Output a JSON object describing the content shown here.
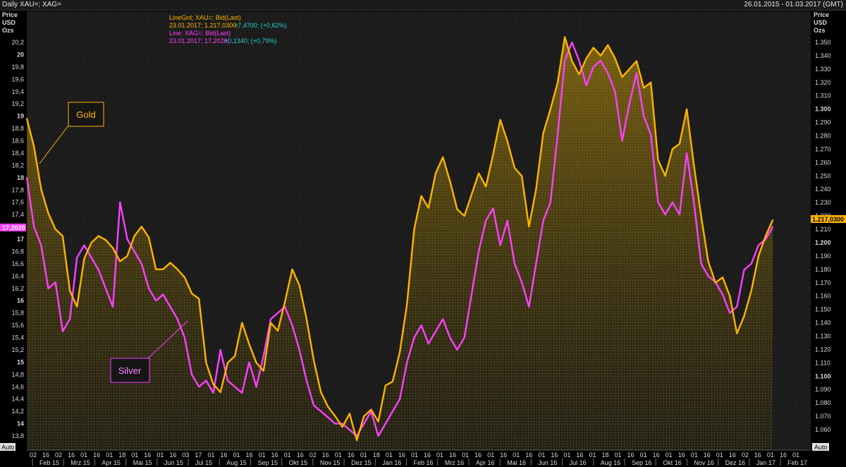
{
  "window": {
    "title": "Daily XAU=; XAG=",
    "date_range": "26.01.2015 - 01.03.2017 (GMT)"
  },
  "left_axis": {
    "header": [
      "Price",
      "USD",
      "Ozs"
    ],
    "current_value": "17,2020",
    "auto_label": "Auto"
  },
  "right_axis": {
    "header": [
      "Price",
      "USD",
      "Ozs"
    ],
    "current_value": "1.217,0300",
    "auto_label": "Auto"
  },
  "legend": {
    "gold_line1": "LineGrd; XAU=; Bid(Last)",
    "gold_line2_date": "23.01.2017; 1.217,0300;",
    "gold_line2_change": "+7,4700; (+0,62%)",
    "silver_line1": "Line; XAG=; Bid(Last)",
    "silver_line2_date": "23.01.2017; 17,2020;",
    "silver_line2_change": "+0,1340; (+0,79%)"
  },
  "annotations": {
    "gold": "Gold",
    "silver": "Silver"
  },
  "colors": {
    "gold": "#ffb400",
    "silver": "#ff40ff",
    "change": "#20d0d0",
    "background": "#1c1c1c"
  },
  "chart_data": {
    "type": "line",
    "title": "Daily XAU=; XAG=",
    "x_ticks_days": [
      "02",
      "16",
      "02",
      "16",
      "01",
      "16",
      "01",
      "18",
      "01",
      "16",
      "01",
      "16",
      "03",
      "17",
      "01",
      "16",
      "01",
      "16",
      "01",
      "16",
      "01",
      "16",
      "02",
      "16",
      "01",
      "16",
      "01",
      "18",
      "01",
      "16",
      "01",
      "16",
      "01",
      "16",
      "01",
      "16",
      "01",
      "16",
      "01",
      "16",
      "01",
      "16",
      "01",
      "16",
      "01",
      "18",
      "01",
      "16",
      "01",
      "16",
      "01",
      "16",
      "01",
      "16",
      "01",
      "16",
      "02",
      "16",
      "01",
      "16",
      "01"
    ],
    "x_ticks_months": [
      "Feb 15",
      "Mrz 15",
      "Apr 15",
      "Mai 15",
      "Jun 15",
      "Jul 15",
      "Aug 15",
      "Sep 15",
      "Okt 15",
      "Nov 15",
      "Dez 15",
      "Jan 16",
      "Feb 16",
      "Mrz 16",
      "Apr 16",
      "Mai 16",
      "Jun 16",
      "Jul 16",
      "Aug 16",
      "Sep 16",
      "Okt 16",
      "Nov 16",
      "Dez 16",
      "Jan 17",
      "Feb 17"
    ],
    "left_axis_ticks": [
      "13,8",
      "14",
      "14,2",
      "14,4",
      "14,6",
      "14,8",
      "15",
      "15,2",
      "15,4",
      "15,6",
      "15,8",
      "16",
      "16,2",
      "16,4",
      "16,6",
      "16,8",
      "17",
      "17,2",
      "17,4",
      "17,6",
      "17,8",
      "18",
      "18,2",
      "18,4",
      "18,6",
      "18,8",
      "19",
      "19,2",
      "19,4",
      "19,6",
      "19,8",
      "20",
      "20,2"
    ],
    "right_axis_ticks": [
      "1.060",
      "1.070",
      "1.080",
      "1.090",
      "1.100",
      "1.110",
      "1.120",
      "1.130",
      "1.140",
      "1.150",
      "1.160",
      "1.170",
      "1.180",
      "1.190",
      "1.200",
      "1.210",
      "1.220",
      "1.230",
      "1.240",
      "1.250",
      "1.260",
      "1.270",
      "1.280",
      "1.290",
      "1.300",
      "1.310",
      "1.320",
      "1.330",
      "1.340",
      "1.350"
    ],
    "left_ylim": [
      13.8,
      20.2
    ],
    "right_ylim": [
      1060,
      1350
    ],
    "series": [
      {
        "name": "XAU=",
        "axis": "right",
        "style": "line-gradient-fill",
        "x": [
          "2015-01-26",
          "2015-02-02",
          "2015-02-09",
          "2015-02-16",
          "2015-02-23",
          "2015-03-02",
          "2015-03-09",
          "2015-03-16",
          "2015-03-23",
          "2015-03-30",
          "2015-04-06",
          "2015-04-13",
          "2015-04-20",
          "2015-04-27",
          "2015-05-04",
          "2015-05-11",
          "2015-05-18",
          "2015-05-25",
          "2015-06-01",
          "2015-06-08",
          "2015-06-15",
          "2015-06-22",
          "2015-06-29",
          "2015-07-06",
          "2015-07-13",
          "2015-07-20",
          "2015-07-27",
          "2015-08-03",
          "2015-08-10",
          "2015-08-17",
          "2015-08-24",
          "2015-08-31",
          "2015-09-07",
          "2015-09-14",
          "2015-09-21",
          "2015-09-28",
          "2015-10-05",
          "2015-10-12",
          "2015-10-19",
          "2015-10-26",
          "2015-11-02",
          "2015-11-09",
          "2015-11-16",
          "2015-11-23",
          "2015-11-30",
          "2015-12-07",
          "2015-12-14",
          "2015-12-21",
          "2015-12-28",
          "2016-01-04",
          "2016-01-11",
          "2016-01-18",
          "2016-01-25",
          "2016-02-01",
          "2016-02-08",
          "2016-02-15",
          "2016-02-22",
          "2016-02-29",
          "2016-03-07",
          "2016-03-14",
          "2016-03-21",
          "2016-03-28",
          "2016-04-04",
          "2016-04-11",
          "2016-04-18",
          "2016-04-25",
          "2016-05-02",
          "2016-05-09",
          "2016-05-16",
          "2016-05-23",
          "2016-05-30",
          "2016-06-06",
          "2016-06-13",
          "2016-06-20",
          "2016-06-27",
          "2016-07-04",
          "2016-07-11",
          "2016-07-18",
          "2016-07-25",
          "2016-08-01",
          "2016-08-08",
          "2016-08-15",
          "2016-08-22",
          "2016-08-29",
          "2016-09-05",
          "2016-09-12",
          "2016-09-19",
          "2016-09-26",
          "2016-10-03",
          "2016-10-10",
          "2016-10-17",
          "2016-10-24",
          "2016-10-31",
          "2016-11-07",
          "2016-11-14",
          "2016-11-21",
          "2016-11-28",
          "2016-12-05",
          "2016-12-12",
          "2016-12-19",
          "2016-12-26",
          "2017-01-02",
          "2017-01-09",
          "2017-01-16",
          "2017-01-23"
        ],
        "y": [
          1293,
          1272,
          1240,
          1222,
          1210,
          1205,
          1164,
          1152,
          1188,
          1200,
          1205,
          1202,
          1196,
          1186,
          1190,
          1205,
          1212,
          1204,
          1180,
          1180,
          1185,
          1180,
          1174,
          1162,
          1158,
          1110,
          1094,
          1088,
          1110,
          1115,
          1140,
          1124,
          1110,
          1104,
          1140,
          1134,
          1156,
          1180,
          1168,
          1143,
          1112,
          1088,
          1077,
          1070,
          1062,
          1072,
          1052,
          1070,
          1075,
          1066,
          1093,
          1096,
          1118,
          1154,
          1210,
          1235,
          1226,
          1252,
          1264,
          1246,
          1225,
          1220,
          1236,
          1252,
          1242,
          1266,
          1292,
          1276,
          1256,
          1250,
          1212,
          1240,
          1282,
          1300,
          1320,
          1354,
          1336,
          1326,
          1338,
          1346,
          1340,
          1348,
          1338,
          1324,
          1330,
          1336,
          1316,
          1320,
          1262,
          1250,
          1270,
          1274,
          1300,
          1258,
          1220,
          1186,
          1170,
          1174,
          1160,
          1132,
          1145,
          1164,
          1190,
          1205,
          1217
        ]
      },
      {
        "name": "XAG=",
        "axis": "left",
        "style": "line",
        "x": [
          "2015-01-26",
          "2015-02-02",
          "2015-02-09",
          "2015-02-16",
          "2015-02-23",
          "2015-03-02",
          "2015-03-09",
          "2015-03-16",
          "2015-03-23",
          "2015-03-30",
          "2015-04-06",
          "2015-04-13",
          "2015-04-20",
          "2015-04-27",
          "2015-05-04",
          "2015-05-11",
          "2015-05-18",
          "2015-05-25",
          "2015-06-01",
          "2015-06-08",
          "2015-06-15",
          "2015-06-22",
          "2015-06-29",
          "2015-07-06",
          "2015-07-13",
          "2015-07-20",
          "2015-07-27",
          "2015-08-03",
          "2015-08-10",
          "2015-08-17",
          "2015-08-24",
          "2015-08-31",
          "2015-09-07",
          "2015-09-14",
          "2015-09-21",
          "2015-09-28",
          "2015-10-05",
          "2015-10-12",
          "2015-10-19",
          "2015-10-26",
          "2015-11-02",
          "2015-11-09",
          "2015-11-16",
          "2015-11-23",
          "2015-11-30",
          "2015-12-07",
          "2015-12-14",
          "2015-12-21",
          "2015-12-28",
          "2016-01-04",
          "2016-01-11",
          "2016-01-18",
          "2016-01-25",
          "2016-02-01",
          "2016-02-08",
          "2016-02-15",
          "2016-02-22",
          "2016-02-29",
          "2016-03-07",
          "2016-03-14",
          "2016-03-21",
          "2016-03-28",
          "2016-04-04",
          "2016-04-11",
          "2016-04-18",
          "2016-04-25",
          "2016-05-02",
          "2016-05-09",
          "2016-05-16",
          "2016-05-23",
          "2016-05-30",
          "2016-06-06",
          "2016-06-13",
          "2016-06-20",
          "2016-06-27",
          "2016-07-04",
          "2016-07-11",
          "2016-07-18",
          "2016-07-25",
          "2016-08-01",
          "2016-08-08",
          "2016-08-15",
          "2016-08-22",
          "2016-08-29",
          "2016-09-05",
          "2016-09-12",
          "2016-09-19",
          "2016-09-26",
          "2016-10-03",
          "2016-10-10",
          "2016-10-17",
          "2016-10-24",
          "2016-10-31",
          "2016-11-07",
          "2016-11-14",
          "2016-11-21",
          "2016-11-28",
          "2016-12-05",
          "2016-12-12",
          "2016-12-19",
          "2016-12-26",
          "2017-01-02",
          "2017-01-09",
          "2017-01-16",
          "2017-01-23"
        ],
        "y": [
          18.0,
          17.2,
          16.9,
          16.2,
          16.3,
          15.5,
          15.7,
          16.7,
          16.9,
          16.7,
          16.5,
          16.2,
          15.9,
          17.6,
          17.0,
          16.8,
          16.6,
          16.2,
          16.0,
          16.1,
          15.9,
          15.7,
          15.4,
          14.8,
          14.6,
          14.7,
          14.5,
          15.2,
          14.7,
          14.6,
          14.5,
          15.0,
          14.6,
          15.1,
          15.7,
          15.8,
          15.9,
          15.6,
          15.2,
          14.7,
          14.3,
          14.2,
          14.1,
          14.0,
          14.0,
          13.9,
          13.8,
          14.0,
          14.2,
          13.8,
          14.0,
          14.2,
          14.4,
          15.0,
          15.4,
          15.6,
          15.3,
          15.5,
          15.7,
          15.4,
          15.2,
          15.4,
          16.1,
          16.8,
          17.3,
          17.5,
          16.9,
          17.3,
          16.6,
          16.3,
          15.9,
          16.6,
          17.3,
          17.6,
          18.7,
          19.9,
          20.2,
          19.9,
          19.5,
          19.8,
          19.9,
          19.7,
          19.4,
          18.6,
          19.2,
          19.7,
          19.0,
          18.7,
          17.6,
          17.4,
          17.6,
          17.4,
          18.4,
          17.6,
          16.6,
          16.4,
          16.3,
          16.1,
          15.8,
          15.9,
          16.5,
          16.6,
          16.9,
          17.0,
          17.2
        ]
      }
    ],
    "grid": true
  }
}
